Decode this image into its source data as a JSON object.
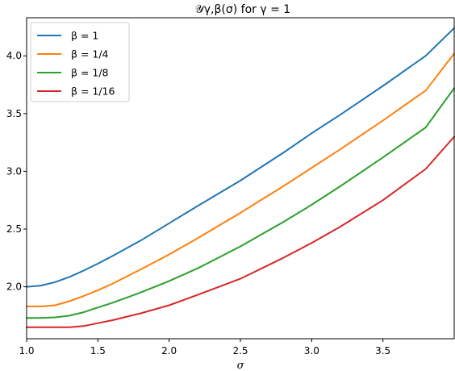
{
  "chart_data": {
    "type": "line",
    "title": "𝒴γ,β(σ) for γ = 1",
    "xlabel": "σ",
    "ylabel": "",
    "xlim": [
      1.0,
      4.0
    ],
    "ylim": [
      1.55,
      4.33
    ],
    "xticks": [
      "1.0",
      "1.5",
      "2.0",
      "2.5",
      "3.0",
      "3.5"
    ],
    "yticks": [
      "2.0",
      "2.5",
      "3.0",
      "3.5",
      "4.0"
    ],
    "grid": false,
    "legend_position": "top-left",
    "series": [
      {
        "name": "β = 1",
        "color": "#1f77b4",
        "x": [
          1.0,
          1.1,
          1.2,
          1.3,
          1.4,
          1.5,
          1.6,
          1.8,
          2.0,
          2.2,
          2.5,
          2.8,
          3.0,
          3.2,
          3.5,
          3.8,
          4.0
        ],
        "y": [
          2.0,
          2.01,
          2.04,
          2.085,
          2.14,
          2.2,
          2.265,
          2.4,
          2.55,
          2.7,
          2.92,
          3.16,
          3.33,
          3.49,
          3.74,
          4.0,
          4.24
        ]
      },
      {
        "name": "β = 1/4",
        "color": "#ff7f0e",
        "x": [
          1.0,
          1.1,
          1.2,
          1.3,
          1.4,
          1.5,
          1.6,
          1.8,
          2.0,
          2.2,
          2.5,
          2.8,
          3.0,
          3.2,
          3.5,
          3.8,
          4.0
        ],
        "y": [
          1.83,
          1.83,
          1.84,
          1.875,
          1.92,
          1.97,
          2.025,
          2.15,
          2.28,
          2.42,
          2.64,
          2.87,
          3.03,
          3.19,
          3.44,
          3.7,
          4.02
        ]
      },
      {
        "name": "β = 1/8",
        "color": "#2ca02c",
        "x": [
          1.0,
          1.1,
          1.2,
          1.3,
          1.4,
          1.5,
          1.6,
          1.8,
          2.0,
          2.2,
          2.5,
          2.8,
          3.0,
          3.2,
          3.5,
          3.8,
          4.0
        ],
        "y": [
          1.73,
          1.73,
          1.735,
          1.75,
          1.78,
          1.82,
          1.86,
          1.95,
          2.05,
          2.16,
          2.35,
          2.56,
          2.71,
          2.87,
          3.12,
          3.38,
          3.72
        ]
      },
      {
        "name": "β = 1/16",
        "color": "#d62728",
        "x": [
          1.0,
          1.1,
          1.2,
          1.3,
          1.4,
          1.5,
          1.6,
          1.8,
          2.0,
          2.2,
          2.5,
          2.8,
          3.0,
          3.2,
          3.5,
          3.8,
          4.0
        ],
        "y": [
          1.65,
          1.65,
          1.65,
          1.65,
          1.66,
          1.685,
          1.71,
          1.77,
          1.84,
          1.93,
          2.07,
          2.25,
          2.38,
          2.52,
          2.75,
          3.02,
          3.3
        ]
      }
    ]
  }
}
